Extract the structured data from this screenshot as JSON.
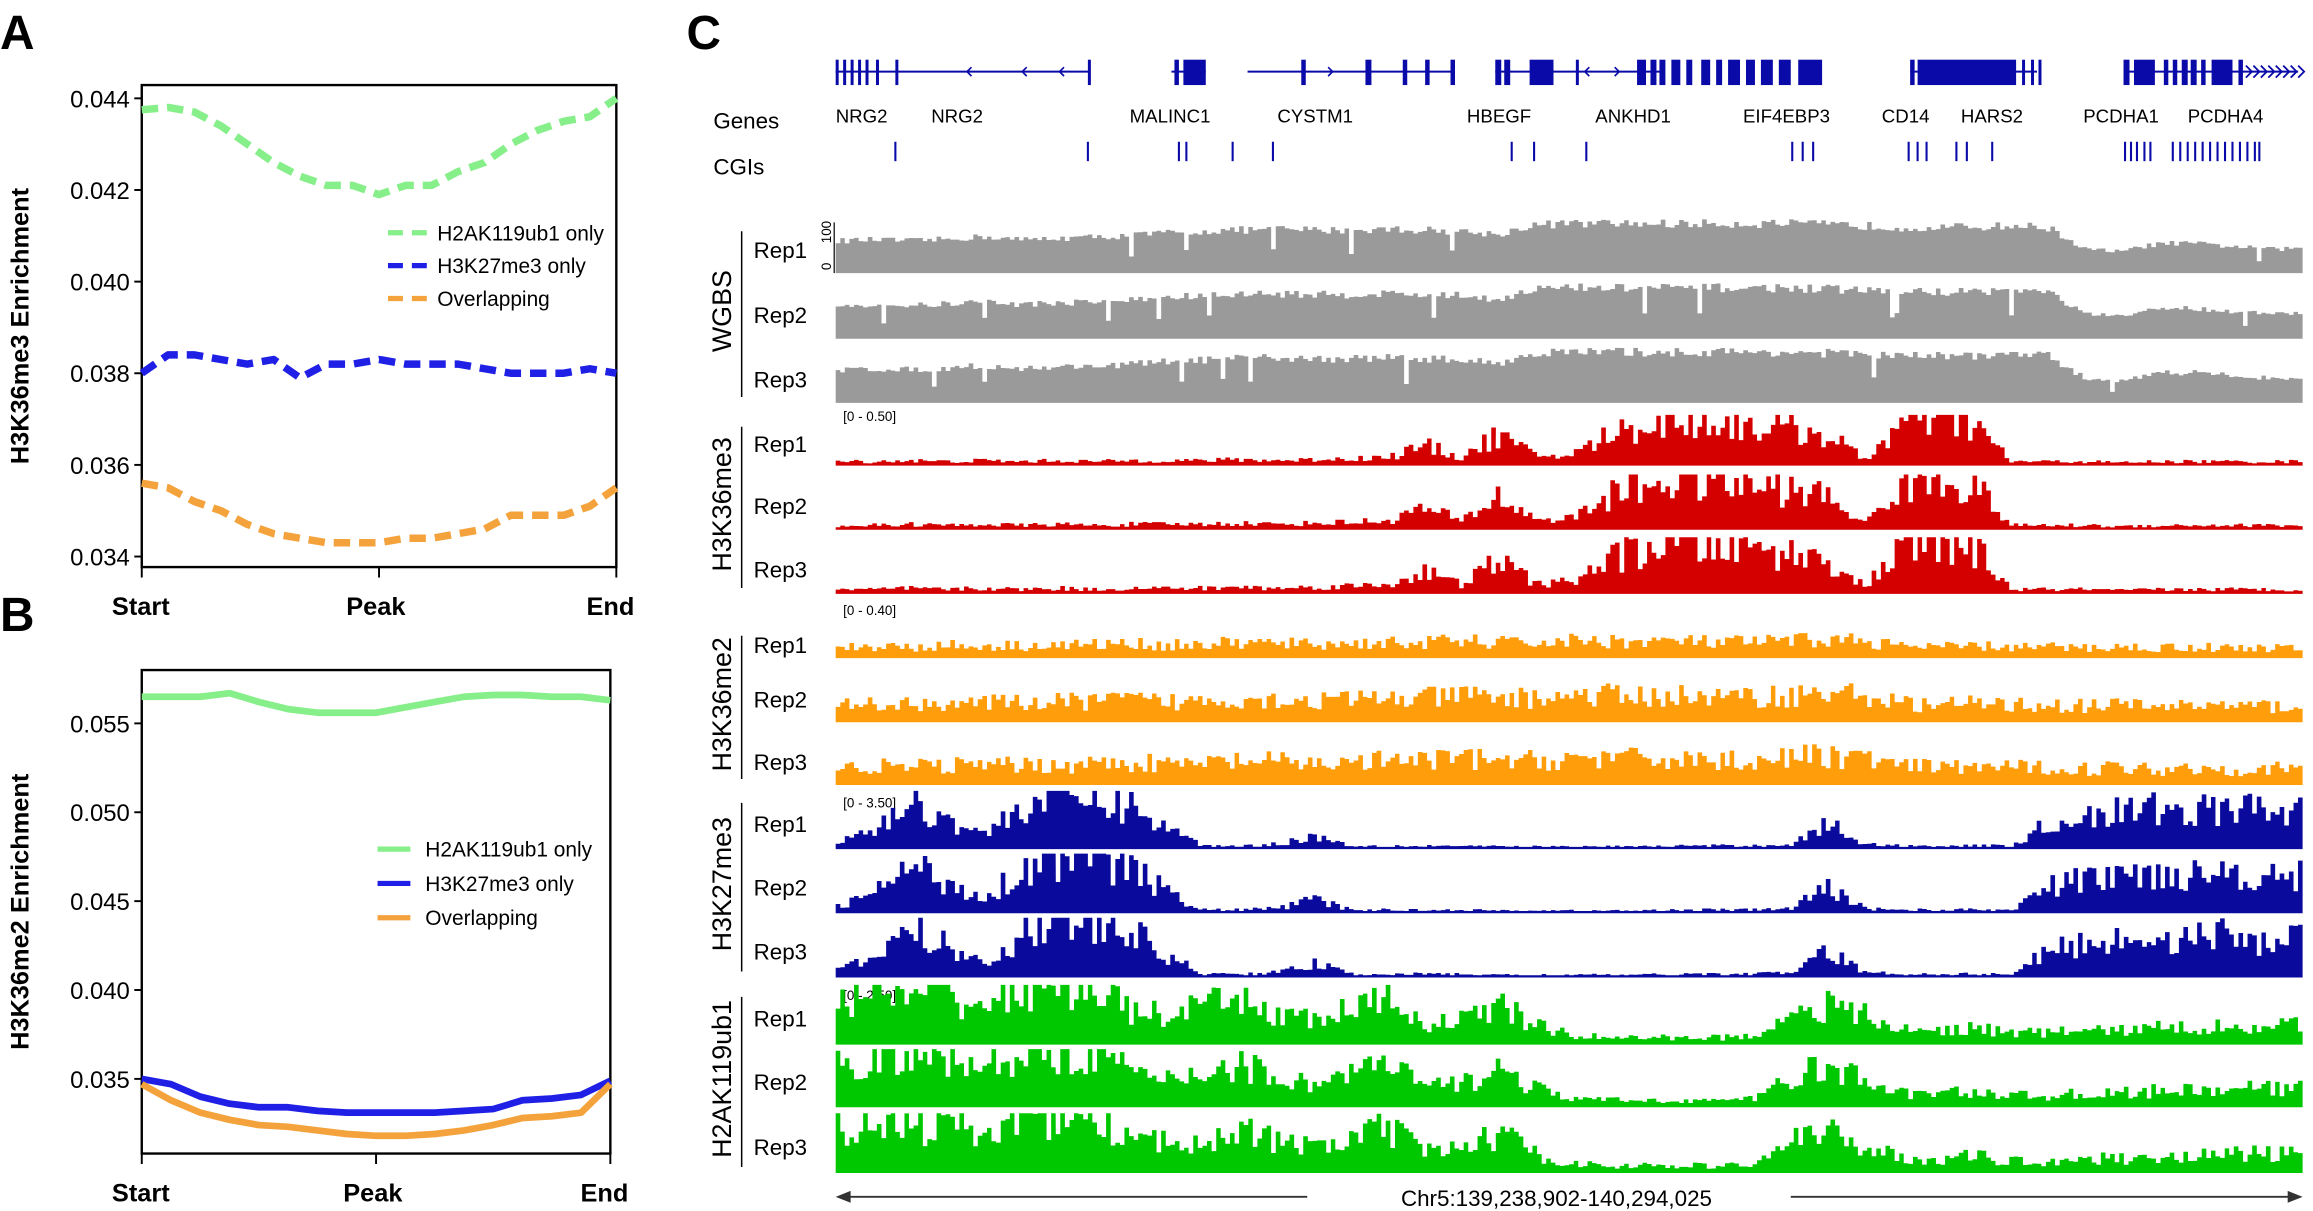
{
  "panels": {
    "a": "A",
    "b": "B",
    "c": "C"
  },
  "chart_data": [
    {
      "type": "line",
      "panel": "A",
      "ylabel": "H3K36me3 Enrichment",
      "xtick_labels": [
        "Start",
        "Peak",
        "End"
      ],
      "yticks": [
        0.034,
        0.036,
        0.038,
        0.04,
        0.042,
        0.044
      ],
      "ytick_labels": [
        "0.034",
        "0.036",
        "0.038",
        "0.040",
        "0.042",
        "0.044"
      ],
      "ylim": [
        0.03377,
        0.04429
      ],
      "line_style": "dashed",
      "grid": false,
      "legend_placement": "right-middle",
      "series": [
        {
          "name": "H2AK119ub1 only",
          "color": "#86ef8a",
          "values": [
            0.04375,
            0.0438,
            0.0437,
            0.0434,
            0.043,
            0.0426,
            0.0423,
            0.0421,
            0.0421,
            0.0419,
            0.0421,
            0.0421,
            0.0424,
            0.0426,
            0.043,
            0.0433,
            0.0435,
            0.0436,
            0.044
          ]
        },
        {
          "name": "H3K27me3 only",
          "color": "#1f1fe6",
          "values": [
            0.038,
            0.0384,
            0.0384,
            0.0383,
            0.0382,
            0.0383,
            0.0379,
            0.0382,
            0.0382,
            0.0383,
            0.0382,
            0.0382,
            0.0382,
            0.0381,
            0.038,
            0.038,
            0.038,
            0.0381,
            0.038
          ]
        },
        {
          "name": "Overlapping",
          "color": "#f4a23c",
          "values": [
            0.0356,
            0.0355,
            0.0352,
            0.035,
            0.0347,
            0.0345,
            0.0344,
            0.0343,
            0.0343,
            0.0343,
            0.0344,
            0.0344,
            0.0345,
            0.0346,
            0.0349,
            0.0349,
            0.0349,
            0.0351,
            0.0355
          ]
        }
      ]
    },
    {
      "type": "line",
      "panel": "B",
      "ylabel": "H3K36me2 Enrichment",
      "xtick_labels": [
        "Start",
        "Peak",
        "End"
      ],
      "yticks": [
        0.035,
        0.04,
        0.045,
        0.05,
        0.055
      ],
      "ytick_labels": [
        "0.035",
        "0.040",
        "0.045",
        "0.050",
        "0.055"
      ],
      "ylim": [
        0.0308,
        0.058
      ],
      "line_style": "solid",
      "grid": false,
      "legend_placement": "right-middle",
      "series": [
        {
          "name": "H2AK119ub1 only",
          "color": "#86ef8a",
          "values": [
            0.0565,
            0.0565,
            0.0565,
            0.0567,
            0.0562,
            0.0558,
            0.0556,
            0.0556,
            0.0556,
            0.0559,
            0.0562,
            0.0565,
            0.0566,
            0.0566,
            0.0565,
            0.0565,
            0.0563
          ]
        },
        {
          "name": "H3K27me3 only",
          "color": "#1f1fe6",
          "values": [
            0.035,
            0.0347,
            0.034,
            0.0336,
            0.0334,
            0.0334,
            0.0332,
            0.0331,
            0.0331,
            0.0331,
            0.0331,
            0.0332,
            0.0333,
            0.0338,
            0.0339,
            0.0341,
            0.0349
          ]
        },
        {
          "name": "Overlapping",
          "color": "#f4a23c",
          "values": [
            0.0347,
            0.0338,
            0.0331,
            0.0327,
            0.0324,
            0.0323,
            0.0321,
            0.0319,
            0.0318,
            0.0318,
            0.0319,
            0.0321,
            0.0324,
            0.0328,
            0.0329,
            0.0331,
            0.0347
          ]
        }
      ]
    }
  ],
  "genome_browser": {
    "region": "Chr5:139,238,902-140,294,025",
    "gene_track_label": "Genes",
    "cgi_track_label": "CGIs",
    "gene_color": "#0a0aa8",
    "genes": [
      "NRG2",
      "NRG2",
      "MALINC1",
      "CYSTM1",
      "HBEGF",
      "ANKHD1",
      "EIF4EBP3",
      "CD14",
      "HARS2",
      "PCDHA1",
      "PCDHA4"
    ],
    "tracks": [
      {
        "mark": "WGBS",
        "color": "#9a9a9a",
        "max": 100,
        "scale_min": "0",
        "scale_max": "100",
        "range_label": "",
        "replicates": [
          "Rep1",
          "Rep2",
          "Rep3"
        ],
        "profile": [
          60,
          62,
          60,
          63,
          68,
          62,
          65,
          67,
          70,
          75,
          78,
          80,
          82,
          80,
          80,
          82,
          80,
          78,
          72,
          90,
          92,
          92,
          92,
          92,
          92,
          92,
          92,
          90,
          88,
          85,
          85,
          86,
          88,
          85,
          45,
          40,
          55,
          55,
          50,
          45
        ]
      },
      {
        "mark": "H3K36me3",
        "color": "#d40000",
        "max": 0.5,
        "range_label": "[0 - 0.50]",
        "replicates": [
          "Rep1",
          "Rep2",
          "Rep3"
        ],
        "profile": [
          0.04,
          0.04,
          0.05,
          0.04,
          0.05,
          0.04,
          0.05,
          0.04,
          0.05,
          0.05,
          0.05,
          0.06,
          0.05,
          0.06,
          0.07,
          0.08,
          0.2,
          0.08,
          0.3,
          0.1,
          0.1,
          0.3,
          0.4,
          0.45,
          0.42,
          0.4,
          0.35,
          0.3,
          0.06,
          0.4,
          0.45,
          0.4,
          0.04,
          0.04,
          0.04,
          0.03,
          0.04,
          0.04,
          0.04,
          0.04
        ]
      },
      {
        "mark": "H3K36me2",
        "color": "#ff9e0a",
        "max": 0.4,
        "range_label": "[0 - 0.40]",
        "replicates": [
          "Rep1",
          "Rep2",
          "Rep3"
        ],
        "profile": [
          0.12,
          0.14,
          0.13,
          0.15,
          0.14,
          0.15,
          0.15,
          0.16,
          0.17,
          0.15,
          0.16,
          0.18,
          0.17,
          0.16,
          0.17,
          0.18,
          0.18,
          0.2,
          0.18,
          0.18,
          0.2,
          0.2,
          0.19,
          0.2,
          0.18,
          0.19,
          0.2,
          0.22,
          0.2,
          0.14,
          0.13,
          0.14,
          0.13,
          0.13,
          0.12,
          0.13,
          0.12,
          0.13,
          0.12,
          0.12
        ]
      },
      {
        "mark": "H3K27me3",
        "color": "#0a0a9c",
        "max": 3.5,
        "range_label": "[0 - 3.50]",
        "replicates": [
          "Rep1",
          "Rep2",
          "Rep3"
        ],
        "profile": [
          0.4,
          1.2,
          2.8,
          1.8,
          0.9,
          2.5,
          3.3,
          3.0,
          2.6,
          1.2,
          0.2,
          0.2,
          0.3,
          0.8,
          0.2,
          0.2,
          0.2,
          0.2,
          0.15,
          0.15,
          0.15,
          0.15,
          0.15,
          0.2,
          0.2,
          0.2,
          0.3,
          1.5,
          0.3,
          0.2,
          0.2,
          0.2,
          0.2,
          1.5,
          2.0,
          2.2,
          2.4,
          2.3,
          2.5,
          2.2
        ]
      },
      {
        "mark": "H2AK119ub1",
        "color": "#00c800",
        "max": 2.5,
        "range_label": "[0 - 2.50]",
        "replicates": [
          "Rep1",
          "Rep2",
          "Rep3"
        ],
        "profile": [
          2.0,
          2.2,
          1.8,
          2.1,
          1.6,
          2.5,
          2.5,
          2.5,
          1.4,
          1.2,
          1.6,
          1.8,
          1.3,
          1.0,
          1.5,
          1.8,
          0.9,
          1.0,
          1.7,
          0.8,
          0.4,
          0.3,
          0.3,
          0.3,
          0.3,
          0.35,
          1.4,
          1.6,
          1.2,
          0.6,
          0.6,
          0.7,
          0.5,
          0.5,
          0.6,
          0.6,
          0.7,
          0.7,
          0.8,
          0.8
        ]
      }
    ]
  }
}
